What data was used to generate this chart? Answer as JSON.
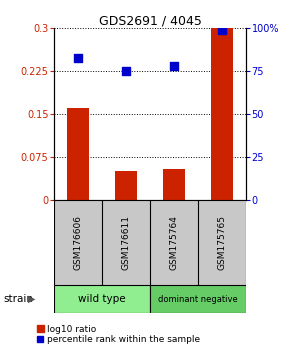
{
  "title": "GDS2691 / 4045",
  "samples": [
    "GSM176606",
    "GSM176611",
    "GSM175764",
    "GSM175765"
  ],
  "log10_ratio": [
    0.16,
    0.05,
    0.055,
    0.3
  ],
  "percentile_rank": [
    83,
    75,
    78,
    99
  ],
  "groups": [
    {
      "label": "wild type",
      "samples": [
        0,
        1
      ],
      "color": "#90EE90"
    },
    {
      "label": "dominant negative",
      "samples": [
        2,
        3
      ],
      "color": "#66CC66"
    }
  ],
  "ylim_left": [
    0,
    0.3
  ],
  "ylim_right": [
    0,
    100
  ],
  "yticks_left": [
    0,
    0.075,
    0.15,
    0.225,
    0.3
  ],
  "ytick_labels_left": [
    "0",
    "0.075",
    "0.15",
    "0.225",
    "0.3"
  ],
  "yticks_right": [
    0,
    25,
    50,
    75,
    100
  ],
  "ytick_labels_right": [
    "0",
    "25",
    "50",
    "75",
    "100%"
  ],
  "bar_color": "#CC2200",
  "dot_color": "#0000CC",
  "bar_width": 0.45,
  "dot_size": 40,
  "background_label": "#C8C8C8",
  "group_colors": [
    "#90EE90",
    "#66CC66"
  ],
  "strain_label": "strain",
  "legend_labels": [
    "log10 ratio",
    "percentile rank within the sample"
  ]
}
